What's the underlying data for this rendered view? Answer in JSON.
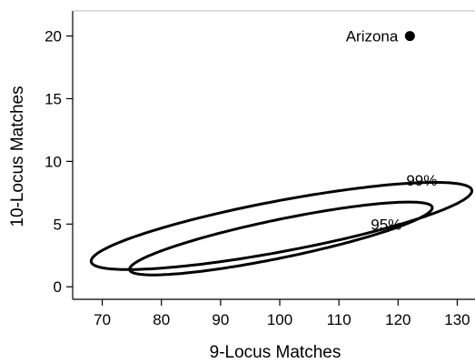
{
  "chart_data": {
    "type": "scatter",
    "xlabel": "9-Locus Matches",
    "ylabel": "10-Locus Matches",
    "xlim": [
      65,
      133
    ],
    "ylim": [
      -1,
      22
    ],
    "x_ticks": [
      "70",
      "80",
      "90",
      "100",
      "110",
      "120",
      "130"
    ],
    "y_ticks": [
      "0",
      "5",
      "10",
      "15",
      "20"
    ],
    "grid": false,
    "points": [
      {
        "label": "Arizona",
        "x": 122,
        "y": 20
      }
    ],
    "ellipses": [
      {
        "label": "99%",
        "cx": 100.3,
        "cy": 4.85,
        "semi_major": 32.3,
        "semi_minor": 2.05,
        "angle_deg": 5.0,
        "label_x": 124,
        "label_y": 8.5
      },
      {
        "label": "95%",
        "cx": 100.2,
        "cy": 3.85,
        "semi_major": 25.7,
        "semi_minor": 1.55,
        "angle_deg": 5.5,
        "label_x": 118,
        "label_y": 5
      }
    ]
  }
}
